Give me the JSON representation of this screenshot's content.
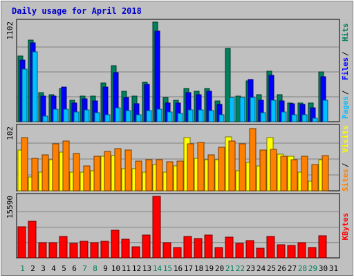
{
  "chart_data": {
    "type": "bar",
    "title": "Daily usage for April 2018",
    "days": [
      "1",
      "2",
      "3",
      "4",
      "5",
      "6",
      "7",
      "8",
      "9",
      "10",
      "11",
      "12",
      "13",
      "14",
      "15",
      "16",
      "17",
      "18",
      "19",
      "20",
      "21",
      "22",
      "23",
      "24",
      "25",
      "26",
      "27",
      "28",
      "29",
      "30",
      "31"
    ],
    "weekend_days": [
      "1",
      "7",
      "8",
      "14",
      "15",
      "21",
      "22",
      "28",
      "29"
    ],
    "panels": [
      {
        "id": "top",
        "max_label": "1102",
        "ylim": [
          0,
          1102
        ],
        "legend": [
          {
            "label": "Pages",
            "color": "#00C0FF"
          },
          {
            "label": "Files",
            "color": "#0000FF"
          },
          {
            "label": "Hits",
            "color": "#00805C"
          }
        ],
        "series": [
          {
            "name": "Hits",
            "color": "#00805C",
            "values": [
              730,
              900,
              320,
              300,
              370,
              240,
              280,
              280,
              430,
              620,
              340,
              280,
              440,
              1102,
              270,
              240,
              370,
              340,
              370,
              230,
              810,
              280,
              450,
              300,
              560,
              300,
              210,
              210,
              210,
              550,
              0
            ]
          },
          {
            "name": "Files",
            "color": "#0000FF",
            "values": [
              680,
              870,
              280,
              280,
              380,
              210,
              250,
              230,
              380,
              540,
              270,
              200,
              410,
              1000,
              210,
              210,
              320,
              300,
              340,
              190,
              0,
              0,
              470,
              240,
              510,
              230,
              200,
              190,
              150,
              500,
              0
            ]
          },
          {
            "name": "Pages",
            "color": "#00C0FF",
            "values": [
              580,
              770,
              60,
              140,
              140,
              110,
              130,
              100,
              80,
              150,
              120,
              80,
              120,
              140,
              110,
              90,
              130,
              130,
              120,
              80,
              270,
              270,
              270,
              100,
              240,
              110,
              80,
              80,
              40,
              240,
              0
            ]
          }
        ]
      },
      {
        "id": "middle",
        "max_label": "102",
        "ylim": [
          0,
          102
        ],
        "legend": [
          {
            "label": "Sites",
            "color": "#FF8000"
          },
          {
            "label": "Visits",
            "color": "#FFFF00"
          }
        ],
        "series": [
          {
            "name": "Visits",
            "color": "#FFFF00",
            "values": [
              65,
              22,
              30,
              50,
              62,
              30,
              30,
              32,
              55,
              56,
              35,
              35,
              30,
              42,
              30,
              40,
              85,
              52,
              50,
              50,
              87,
              32,
              45,
              40,
              85,
              59,
              55,
              30,
              16,
              50,
              0
            ]
          },
          {
            "name": "Sites",
            "color": "#FF8000",
            "values": [
              85,
              52,
              58,
              75,
              80,
              60,
              40,
              55,
              63,
              68,
              65,
              48,
              50,
              50,
              47,
              48,
              75,
              78,
              58,
              70,
              80,
              75,
              100,
              65,
              67,
              55,
              50,
              55,
              42,
              57,
              0
            ]
          }
        ]
      },
      {
        "id": "bottom",
        "max_label": "15590",
        "ylim": [
          0,
          15590
        ],
        "legend": [
          {
            "label": "KBytes",
            "color": "#FF0000"
          }
        ],
        "series": [
          {
            "name": "KBytes",
            "color": "#FF0000",
            "values": [
              7800,
              9200,
              3900,
              3900,
              5400,
              3600,
              4200,
              3800,
              4200,
              7000,
              4800,
              2800,
              5700,
              15590,
              3900,
              2700,
              5400,
              4900,
              5800,
              2700,
              5200,
              3700,
              4400,
              2500,
              5400,
              3300,
              3100,
              3900,
              2700,
              5600,
              0
            ]
          }
        ]
      }
    ],
    "grid": true
  }
}
